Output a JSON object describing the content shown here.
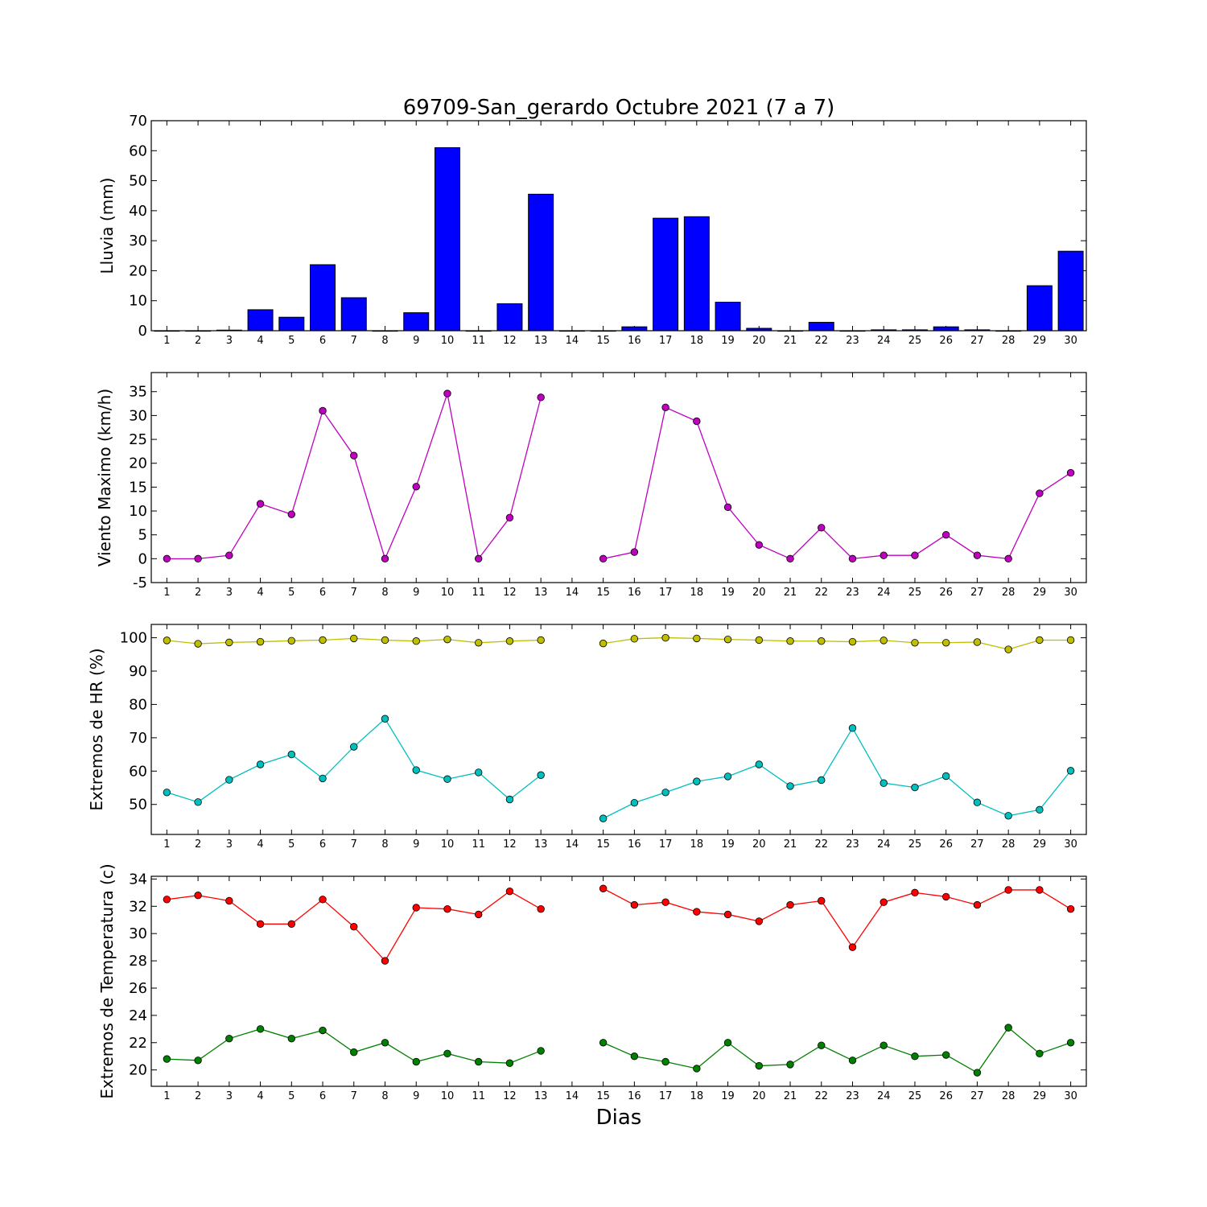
{
  "figure": {
    "title": "69709-San_gerardo Octubre 2021  (7 a 7)",
    "xlabel": "Dias"
  },
  "chart_data": [
    {
      "type": "bar",
      "title": "69709-San_gerardo Octubre 2021  (7 a 7)",
      "xlabel": "",
      "ylabel": "Lluvia (mm)",
      "x": [
        1,
        2,
        3,
        4,
        5,
        6,
        7,
        8,
        9,
        10,
        11,
        12,
        13,
        14,
        15,
        16,
        17,
        18,
        19,
        20,
        21,
        22,
        23,
        24,
        25,
        26,
        27,
        28,
        29,
        30
      ],
      "values": [
        0,
        0,
        0.2,
        7,
        4.5,
        22,
        11,
        0,
        6,
        61,
        0,
        9,
        45.5,
        0,
        0,
        1.3,
        37.5,
        38,
        9.5,
        0.8,
        0,
        2.8,
        0,
        0.3,
        0.3,
        1.3,
        0.3,
        0,
        15,
        26.5
      ],
      "ylim": [
        0,
        70
      ],
      "yticks": [
        0,
        10,
        20,
        30,
        40,
        50,
        60,
        70
      ],
      "xlim": [
        0.5,
        30.5
      ],
      "color": "#0000ff",
      "grid": false
    },
    {
      "type": "line",
      "ylabel": "Viento Maximo (km/h)",
      "x": [
        1,
        2,
        3,
        4,
        5,
        6,
        7,
        8,
        9,
        10,
        11,
        12,
        13,
        14,
        15,
        16,
        17,
        18,
        19,
        20,
        21,
        22,
        23,
        24,
        25,
        26,
        27,
        28,
        29,
        30
      ],
      "series": [
        {
          "color": "#bf00bf",
          "values": [
            0,
            0,
            0.7,
            11.5,
            9.3,
            31,
            21.6,
            0,
            15.1,
            34.6,
            0,
            8.6,
            33.8,
            null,
            0,
            1.4,
            31.7,
            28.8,
            10.8,
            2.9,
            0,
            6.5,
            0,
            0.7,
            0.7,
            5,
            0.7,
            0,
            13.7,
            18
          ]
        }
      ],
      "ylim": [
        -5,
        39
      ],
      "yticks": [
        -5,
        0,
        5,
        10,
        15,
        20,
        25,
        30,
        35
      ],
      "xlim": [
        0.5,
        30.5
      ],
      "grid": false
    },
    {
      "type": "line",
      "ylabel": "Extremos de HR (%)",
      "x": [
        1,
        2,
        3,
        4,
        5,
        6,
        7,
        8,
        9,
        10,
        11,
        12,
        13,
        14,
        15,
        16,
        17,
        18,
        19,
        20,
        21,
        22,
        23,
        24,
        25,
        26,
        27,
        28,
        29,
        30
      ],
      "series": [
        {
          "color": "#bfbf00",
          "values": [
            99.2,
            98.2,
            98.6,
            98.8,
            99.1,
            99.3,
            99.8,
            99.3,
            99,
            99.5,
            98.5,
            99,
            99.3,
            null,
            98.3,
            99.7,
            100,
            99.8,
            99.5,
            99.3,
            99,
            99,
            98.8,
            99.2,
            98.5,
            98.5,
            98.7,
            96.5,
            99.3,
            99.3
          ]
        },
        {
          "color": "#00bfbf",
          "values": [
            53.6,
            50.7,
            57.4,
            62,
            65,
            57.8,
            67.3,
            75.7,
            60.3,
            57.6,
            59.6,
            51.5,
            58.8,
            null,
            45.8,
            50.5,
            53.6,
            56.9,
            58.4,
            62,
            55.5,
            57.3,
            72.9,
            56.4,
            55.1,
            58.5,
            50.6,
            46.6,
            48.4,
            60.1
          ]
        }
      ],
      "ylim": [
        41,
        104
      ],
      "yticks": [
        50,
        60,
        70,
        80,
        90,
        100
      ],
      "xlim": [
        0.5,
        30.5
      ],
      "grid": false
    },
    {
      "type": "line",
      "ylabel": "Extremos de Temperatura (c)",
      "xlabel": "Dias",
      "x": [
        1,
        2,
        3,
        4,
        5,
        6,
        7,
        8,
        9,
        10,
        11,
        12,
        13,
        14,
        15,
        16,
        17,
        18,
        19,
        20,
        21,
        22,
        23,
        24,
        25,
        26,
        27,
        28,
        29,
        30
      ],
      "series": [
        {
          "color": "#ff0000",
          "values": [
            32.5,
            32.8,
            32.4,
            30.7,
            30.7,
            32.5,
            30.5,
            28,
            31.9,
            31.8,
            31.4,
            33.1,
            31.8,
            null,
            33.3,
            32.1,
            32.3,
            31.6,
            31.4,
            30.9,
            32.1,
            32.4,
            29,
            32.3,
            33,
            32.7,
            32.1,
            33.2,
            33.2,
            31.8
          ]
        },
        {
          "color": "#008000",
          "values": [
            20.8,
            20.7,
            22.3,
            23,
            22.3,
            22.9,
            21.3,
            22,
            20.6,
            21.2,
            20.6,
            20.5,
            21.4,
            null,
            22,
            21,
            20.6,
            20.1,
            22,
            20.3,
            20.4,
            21.8,
            20.7,
            21.8,
            21,
            21.1,
            19.8,
            23.1,
            21.2,
            22
          ]
        }
      ],
      "ylim": [
        18.8,
        34.2
      ],
      "yticks": [
        20,
        22,
        24,
        26,
        28,
        30,
        32,
        34
      ],
      "xlim": [
        0.5,
        30.5
      ],
      "grid": false
    }
  ]
}
